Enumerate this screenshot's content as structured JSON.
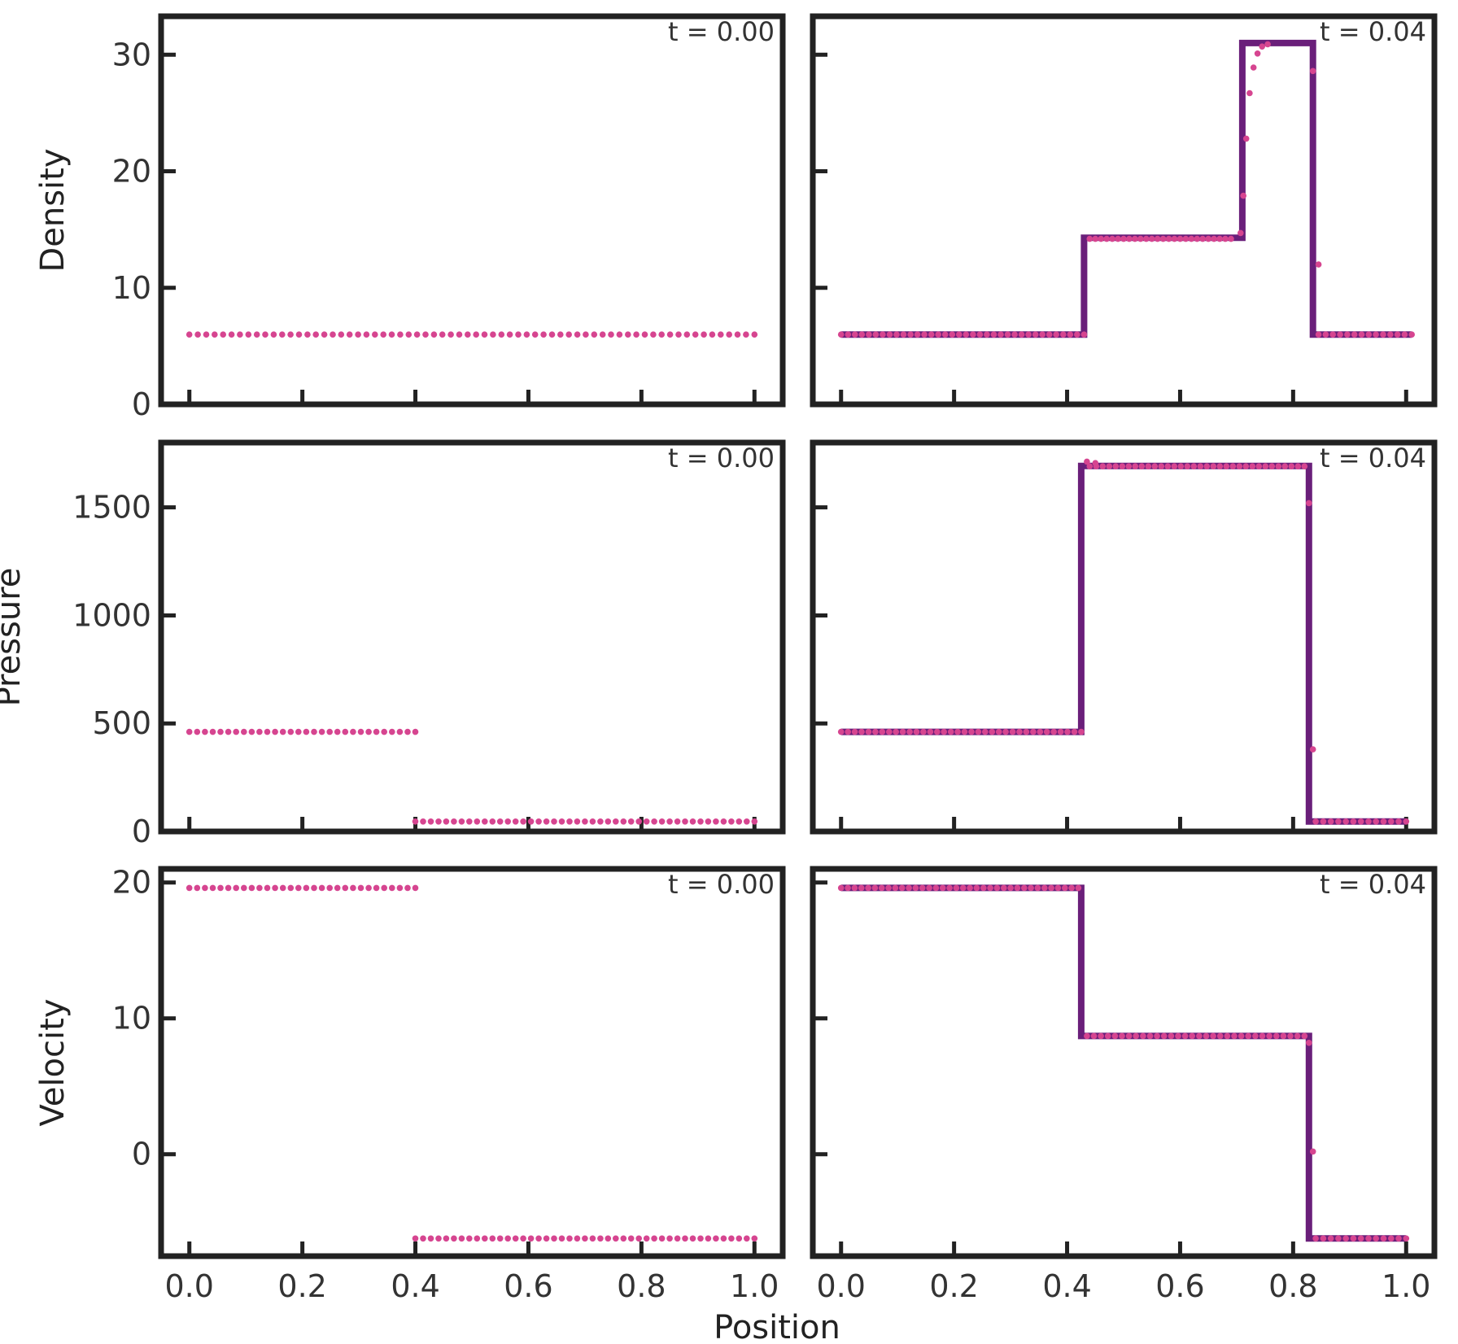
{
  "colors": {
    "frame": "#222222",
    "exact_line": "#6a1f7a",
    "sim_points": "#d64590"
  },
  "figure": {
    "xlabel": "Position"
  },
  "chart_data": [
    {
      "type": "line",
      "panel": "density-t0",
      "ylabel": "Density",
      "time_label": "t = 0.00",
      "xlim": [
        -0.05,
        1.05
      ],
      "ylim": [
        0,
        33.3
      ],
      "xticks": [
        0.0,
        0.2,
        0.4,
        0.6,
        0.8,
        1.0
      ],
      "xticklabels": [],
      "yticks": [
        0,
        10,
        20,
        30
      ],
      "yticklabels": [
        "0",
        "10",
        "20",
        "30"
      ],
      "series": [
        {
          "kind": "points",
          "segments": [
            {
              "x0": 0.0,
              "x1": 1.0,
              "y": 5.99,
              "n": 68
            }
          ],
          "extra": []
        }
      ]
    },
    {
      "type": "line",
      "panel": "density-t004",
      "ylabel": "",
      "time_label": "t = 0.04",
      "xlim": [
        -0.05,
        1.05
      ],
      "ylim": [
        0,
        33.3
      ],
      "xticks": [
        0.0,
        0.2,
        0.4,
        0.6,
        0.8,
        1.0
      ],
      "xticklabels": [],
      "yticks": [
        0,
        10,
        20,
        30
      ],
      "yticklabels": [],
      "series": [
        {
          "kind": "line",
          "x": [
            0.0,
            0.43,
            0.43,
            0.71,
            0.71,
            0.835,
            0.835,
            1.01
          ],
          "y": [
            5.99,
            5.99,
            14.29,
            14.29,
            31.0,
            31.0,
            5.99,
            5.99
          ]
        },
        {
          "kind": "points",
          "segments": [
            {
              "x0": 0.0,
              "x1": 0.43,
              "y": 5.99,
              "n": 36
            },
            {
              "x0": 0.44,
              "x1": 0.69,
              "y": 14.2,
              "n": 26
            },
            {
              "x0": 0.845,
              "x1": 1.01,
              "y": 5.99,
              "n": 14
            }
          ],
          "extra": [
            [
              0.707,
              14.7
            ],
            [
              0.712,
              17.9
            ],
            [
              0.717,
              22.8
            ],
            [
              0.723,
              26.7
            ],
            [
              0.73,
              28.9
            ],
            [
              0.737,
              30.1
            ],
            [
              0.745,
              30.7
            ],
            [
              0.755,
              30.9
            ],
            [
              0.835,
              28.6
            ],
            [
              0.845,
              12.0
            ]
          ]
        }
      ]
    },
    {
      "type": "line",
      "panel": "pressure-t0",
      "ylabel": "Pressure",
      "time_label": "t = 0.00",
      "xlim": [
        -0.05,
        1.05
      ],
      "ylim": [
        0,
        1800
      ],
      "xticks": [
        0.0,
        0.2,
        0.4,
        0.6,
        0.8,
        1.0
      ],
      "xticklabels": [],
      "yticks": [
        0,
        500,
        1000,
        1500
      ],
      "yticklabels": [
        "0",
        "500",
        "1000",
        "1500"
      ],
      "series": [
        {
          "kind": "points",
          "segments": [
            {
              "x0": 0.0,
              "x1": 0.4,
              "y": 460.9,
              "n": 30
            },
            {
              "x0": 0.4,
              "x1": 1.0,
              "y": 46.1,
              "n": 45
            }
          ],
          "extra": []
        }
      ]
    },
    {
      "type": "line",
      "panel": "pressure-t004",
      "ylabel": "",
      "time_label": "t = 0.04",
      "xlim": [
        -0.05,
        1.05
      ],
      "ylim": [
        0,
        1800
      ],
      "xticks": [
        0.0,
        0.2,
        0.4,
        0.6,
        0.8,
        1.0
      ],
      "xticklabels": [],
      "yticks": [
        0,
        500,
        1000,
        1500
      ],
      "yticklabels": [],
      "series": [
        {
          "kind": "line",
          "x": [
            0.0,
            0.425,
            0.425,
            0.828,
            0.828,
            1.0
          ],
          "y": [
            460.9,
            460.9,
            1692,
            1692,
            46.1,
            46.1
          ]
        },
        {
          "kind": "points",
          "segments": [
            {
              "x0": 0.0,
              "x1": 0.425,
              "y": 460.9,
              "n": 36
            },
            {
              "x0": 0.44,
              "x1": 0.82,
              "y": 1690,
              "n": 34
            },
            {
              "x0": 0.84,
              "x1": 1.0,
              "y": 46.1,
              "n": 13
            }
          ],
          "extra": [
            [
              0.435,
              1712
            ],
            [
              0.45,
              1705
            ],
            [
              0.828,
              1520
            ],
            [
              0.835,
              380
            ]
          ]
        }
      ]
    },
    {
      "type": "line",
      "panel": "velocity-t0",
      "ylabel": "Velocity",
      "time_label": "t = 0.00",
      "xlim": [
        -0.05,
        1.05
      ],
      "ylim": [
        -7.5,
        21.0
      ],
      "xticks": [
        0.0,
        0.2,
        0.4,
        0.6,
        0.8,
        1.0
      ],
      "xticklabels": [
        "0.0",
        "0.2",
        "0.4",
        "0.6",
        "0.8",
        "1.0"
      ],
      "yticks": [
        0,
        10,
        20
      ],
      "yticklabels": [
        "0",
        "10",
        "20"
      ],
      "series": [
        {
          "kind": "points",
          "segments": [
            {
              "x0": 0.0,
              "x1": 0.4,
              "y": 19.6,
              "n": 30
            },
            {
              "x0": 0.4,
              "x1": 1.0,
              "y": -6.2,
              "n": 45
            }
          ],
          "extra": []
        }
      ]
    },
    {
      "type": "line",
      "panel": "velocity-t004",
      "ylabel": "",
      "time_label": "t = 0.04",
      "xlim": [
        -0.05,
        1.05
      ],
      "ylim": [
        -7.5,
        21.0
      ],
      "xticks": [
        0.0,
        0.2,
        0.4,
        0.6,
        0.8,
        1.0
      ],
      "xticklabels": [
        "0.0",
        "0.2",
        "0.4",
        "0.6",
        "0.8",
        "1.0"
      ],
      "yticks": [
        0,
        10,
        20
      ],
      "yticklabels": [],
      "series": [
        {
          "kind": "line",
          "x": [
            0.0,
            0.425,
            0.425,
            0.828,
            0.828,
            1.0
          ],
          "y": [
            19.6,
            19.6,
            8.7,
            8.7,
            -6.2,
            -6.2
          ]
        },
        {
          "kind": "points",
          "segments": [
            {
              "x0": 0.0,
              "x1": 0.42,
              "y": 19.6,
              "n": 36
            },
            {
              "x0": 0.435,
              "x1": 0.82,
              "y": 8.7,
              "n": 32
            },
            {
              "x0": 0.84,
              "x1": 1.0,
              "y": -6.2,
              "n": 13
            }
          ],
          "extra": [
            [
              0.828,
              8.2
            ],
            [
              0.835,
              0.2
            ]
          ]
        }
      ]
    }
  ]
}
